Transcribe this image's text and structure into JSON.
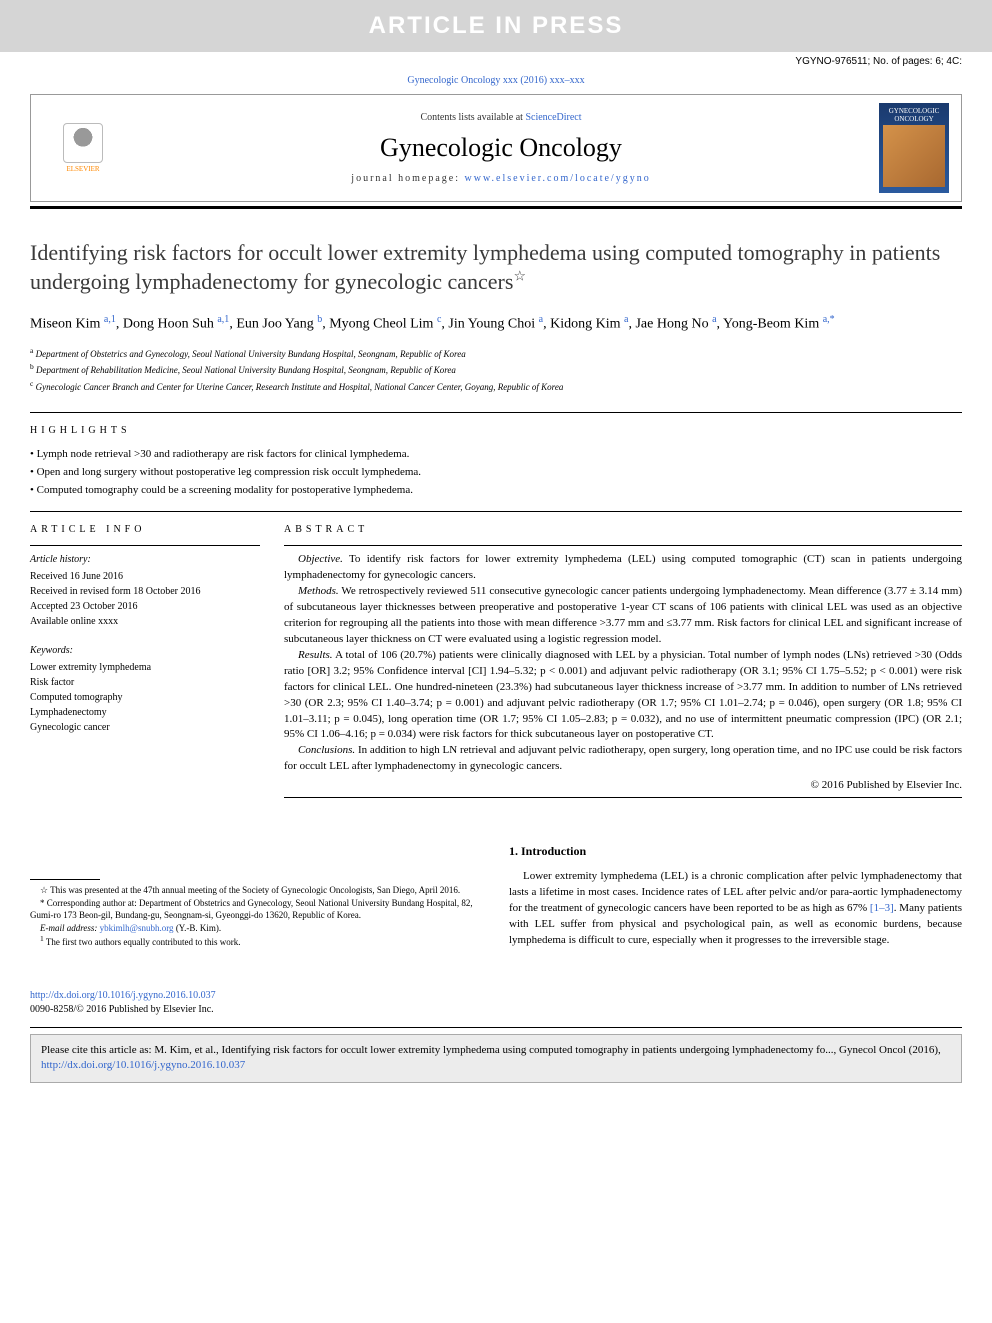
{
  "banner": "ARTICLE IN PRESS",
  "top_meta": "YGYNO-976511; No. of pages: 6; 4C:",
  "journal_ref": "Gynecologic Oncology xxx (2016) xxx–xxx",
  "publisher_logo": "ELSEVIER",
  "contents_text": "Contents lists available at ",
  "contents_link": "ScienceDirect",
  "journal_title": "Gynecologic Oncology",
  "homepage_label": "journal homepage: ",
  "homepage_url": "www.elsevier.com/locate/ygyno",
  "cover_label": "GYNECOLOGIC ONCOLOGY",
  "article_title": "Identifying risk factors for occult lower extremity lymphedema using computed tomography in patients undergoing lymphadenectomy for gynecologic cancers",
  "title_star": "☆",
  "authors_html": "Miseon Kim <sup>a,1</sup>, Dong Hoon Suh <sup>a,1</sup>, Eun Joo Yang <sup>b</sup>, Myong Cheol Lim <sup>c</sup>, Jin Young Choi <sup>a</sup>, Kidong Kim <sup>a</sup>, Jae Hong No <sup>a</sup>, Yong-Beom Kim <sup>a,*</sup>",
  "affiliations": [
    {
      "sup": "a",
      "text": "Department of Obstetrics and Gynecology, Seoul National University Bundang Hospital, Seongnam, Republic of Korea"
    },
    {
      "sup": "b",
      "text": "Department of Rehabilitation Medicine, Seoul National University Bundang Hospital, Seongnam, Republic of Korea"
    },
    {
      "sup": "c",
      "text": "Gynecologic Cancer Branch and Center for Uterine Cancer, Research Institute and Hospital, National Cancer Center, Goyang, Republic of Korea"
    }
  ],
  "highlights_label": "HIGHLIGHTS",
  "highlights": [
    "Lymph node retrieval >30 and radiotherapy are risk factors for clinical lymphedema.",
    "Open and long surgery without postoperative leg compression risk occult lymphedema.",
    "Computed tomography could be a screening modality for postoperative lymphedema."
  ],
  "article_info_label": "ARTICLE INFO",
  "history_label": "Article history:",
  "history": [
    "Received 16 June 2016",
    "Received in revised form 18 October 2016",
    "Accepted 23 October 2016",
    "Available online xxxx"
  ],
  "keywords_label": "Keywords:",
  "keywords": [
    "Lower extremity lymphedema",
    "Risk factor",
    "Computed tomography",
    "Lymphadenectomy",
    "Gynecologic cancer"
  ],
  "abstract_label": "ABSTRACT",
  "abstract": {
    "objective": "To identify risk factors for lower extremity lymphedema (LEL) using computed tomographic (CT) scan in patients undergoing lymphadenectomy for gynecologic cancers.",
    "methods": "We retrospectively reviewed 511 consecutive gynecologic cancer patients undergoing lymphadenectomy. Mean difference (3.77 ± 3.14 mm) of subcutaneous layer thicknesses between preoperative and postoperative 1-year CT scans of 106 patients with clinical LEL was used as an objective criterion for regrouping all the patients into those with mean difference >3.77 mm and ≤3.77 mm. Risk factors for clinical LEL and significant increase of subcutaneous layer thickness on CT were evaluated using a logistic regression model.",
    "results": "A total of 106 (20.7%) patients were clinically diagnosed with LEL by a physician. Total number of lymph nodes (LNs) retrieved >30 (Odds ratio [OR] 3.2; 95% Confidence interval [CI] 1.94–5.32; p < 0.001) and adjuvant pelvic radiotherapy (OR 3.1; 95% CI 1.75–5.52; p < 0.001) were risk factors for clinical LEL. One hundred-nineteen (23.3%) had subcutaneous layer thickness increase of >3.77 mm. In addition to number of LNs retrieved >30 (OR 2.3; 95% CI 1.40–3.74; p = 0.001) and adjuvant pelvic radiotherapy (OR 1.7; 95% CI 1.01–2.74; p = 0.046), open surgery (OR 1.8; 95% CI 1.01–3.11; p = 0.045), long operation time (OR 1.7; 95% CI 1.05–2.83; p = 0.032), and no use of intermittent pneumatic compression (IPC) (OR 2.1; 95% CI 1.06–4.16; p = 0.034) were risk factors for thick subcutaneous layer on postoperative CT.",
    "conclusions": "In addition to high LN retrieval and adjuvant pelvic radiotherapy, open surgery, long operation time, and no IPC use could be risk factors for occult LEL after lymphadenectomy in gynecologic cancers."
  },
  "abstract_copyright": "© 2016 Published by Elsevier Inc.",
  "footnotes": {
    "star": "This was presented at the 47th annual meeting of the Society of Gynecologic Oncologists, San Diego, April 2016.",
    "corr": "Corresponding author at: Department of Obstetrics and Gynecology, Seoul National University Bundang Hospital, 82, Gumi-ro 173 Beon-gil, Bundang-gu, Seongnam-si, Gyeonggi-do 13620, Republic of Korea.",
    "email_label": "E-mail address:",
    "email": "ybkimlh@snubh.org",
    "email_person": "(Y.-B. Kim).",
    "contrib": "The first two authors equally contributed to this work."
  },
  "intro_heading": "1. Introduction",
  "intro_text": "Lower extremity lymphedema (LEL) is a chronic complication after pelvic lymphadenectomy that lasts a lifetime in most cases. Incidence rates of LEL after pelvic and/or para-aortic lymphadenectomy for the treatment of gynecologic cancers have been reported to be as high as 67% ",
  "intro_ref": "[1–3]",
  "intro_text2": ". Many patients with LEL suffer from physical and psychological pain, as well as economic burdens, because lymphedema is difficult to cure, especially when it progresses to the irreversible stage.",
  "doi_url": "http://dx.doi.org/10.1016/j.ygyno.2016.10.037",
  "issn_line": "0090-8258/© 2016 Published by Elsevier Inc.",
  "cite_text": "Please cite this article as: M. Kim, et al., Identifying risk factors for occult lower extremity lymphedema using computed tomography in patients undergoing lymphadenectomy fo..., Gynecol Oncol (2016), ",
  "cite_url": "http://dx.doi.org/10.1016/j.ygyno.2016.10.037",
  "colors": {
    "banner_bg": "#d5d5d5",
    "banner_text": "#ffffff",
    "link": "#3366cc",
    "rule": "#000000",
    "cite_bg": "#ececec",
    "cover_top": "#1a3a6e",
    "cover_img": "#d4924a",
    "elsevier": "#ff8800"
  }
}
